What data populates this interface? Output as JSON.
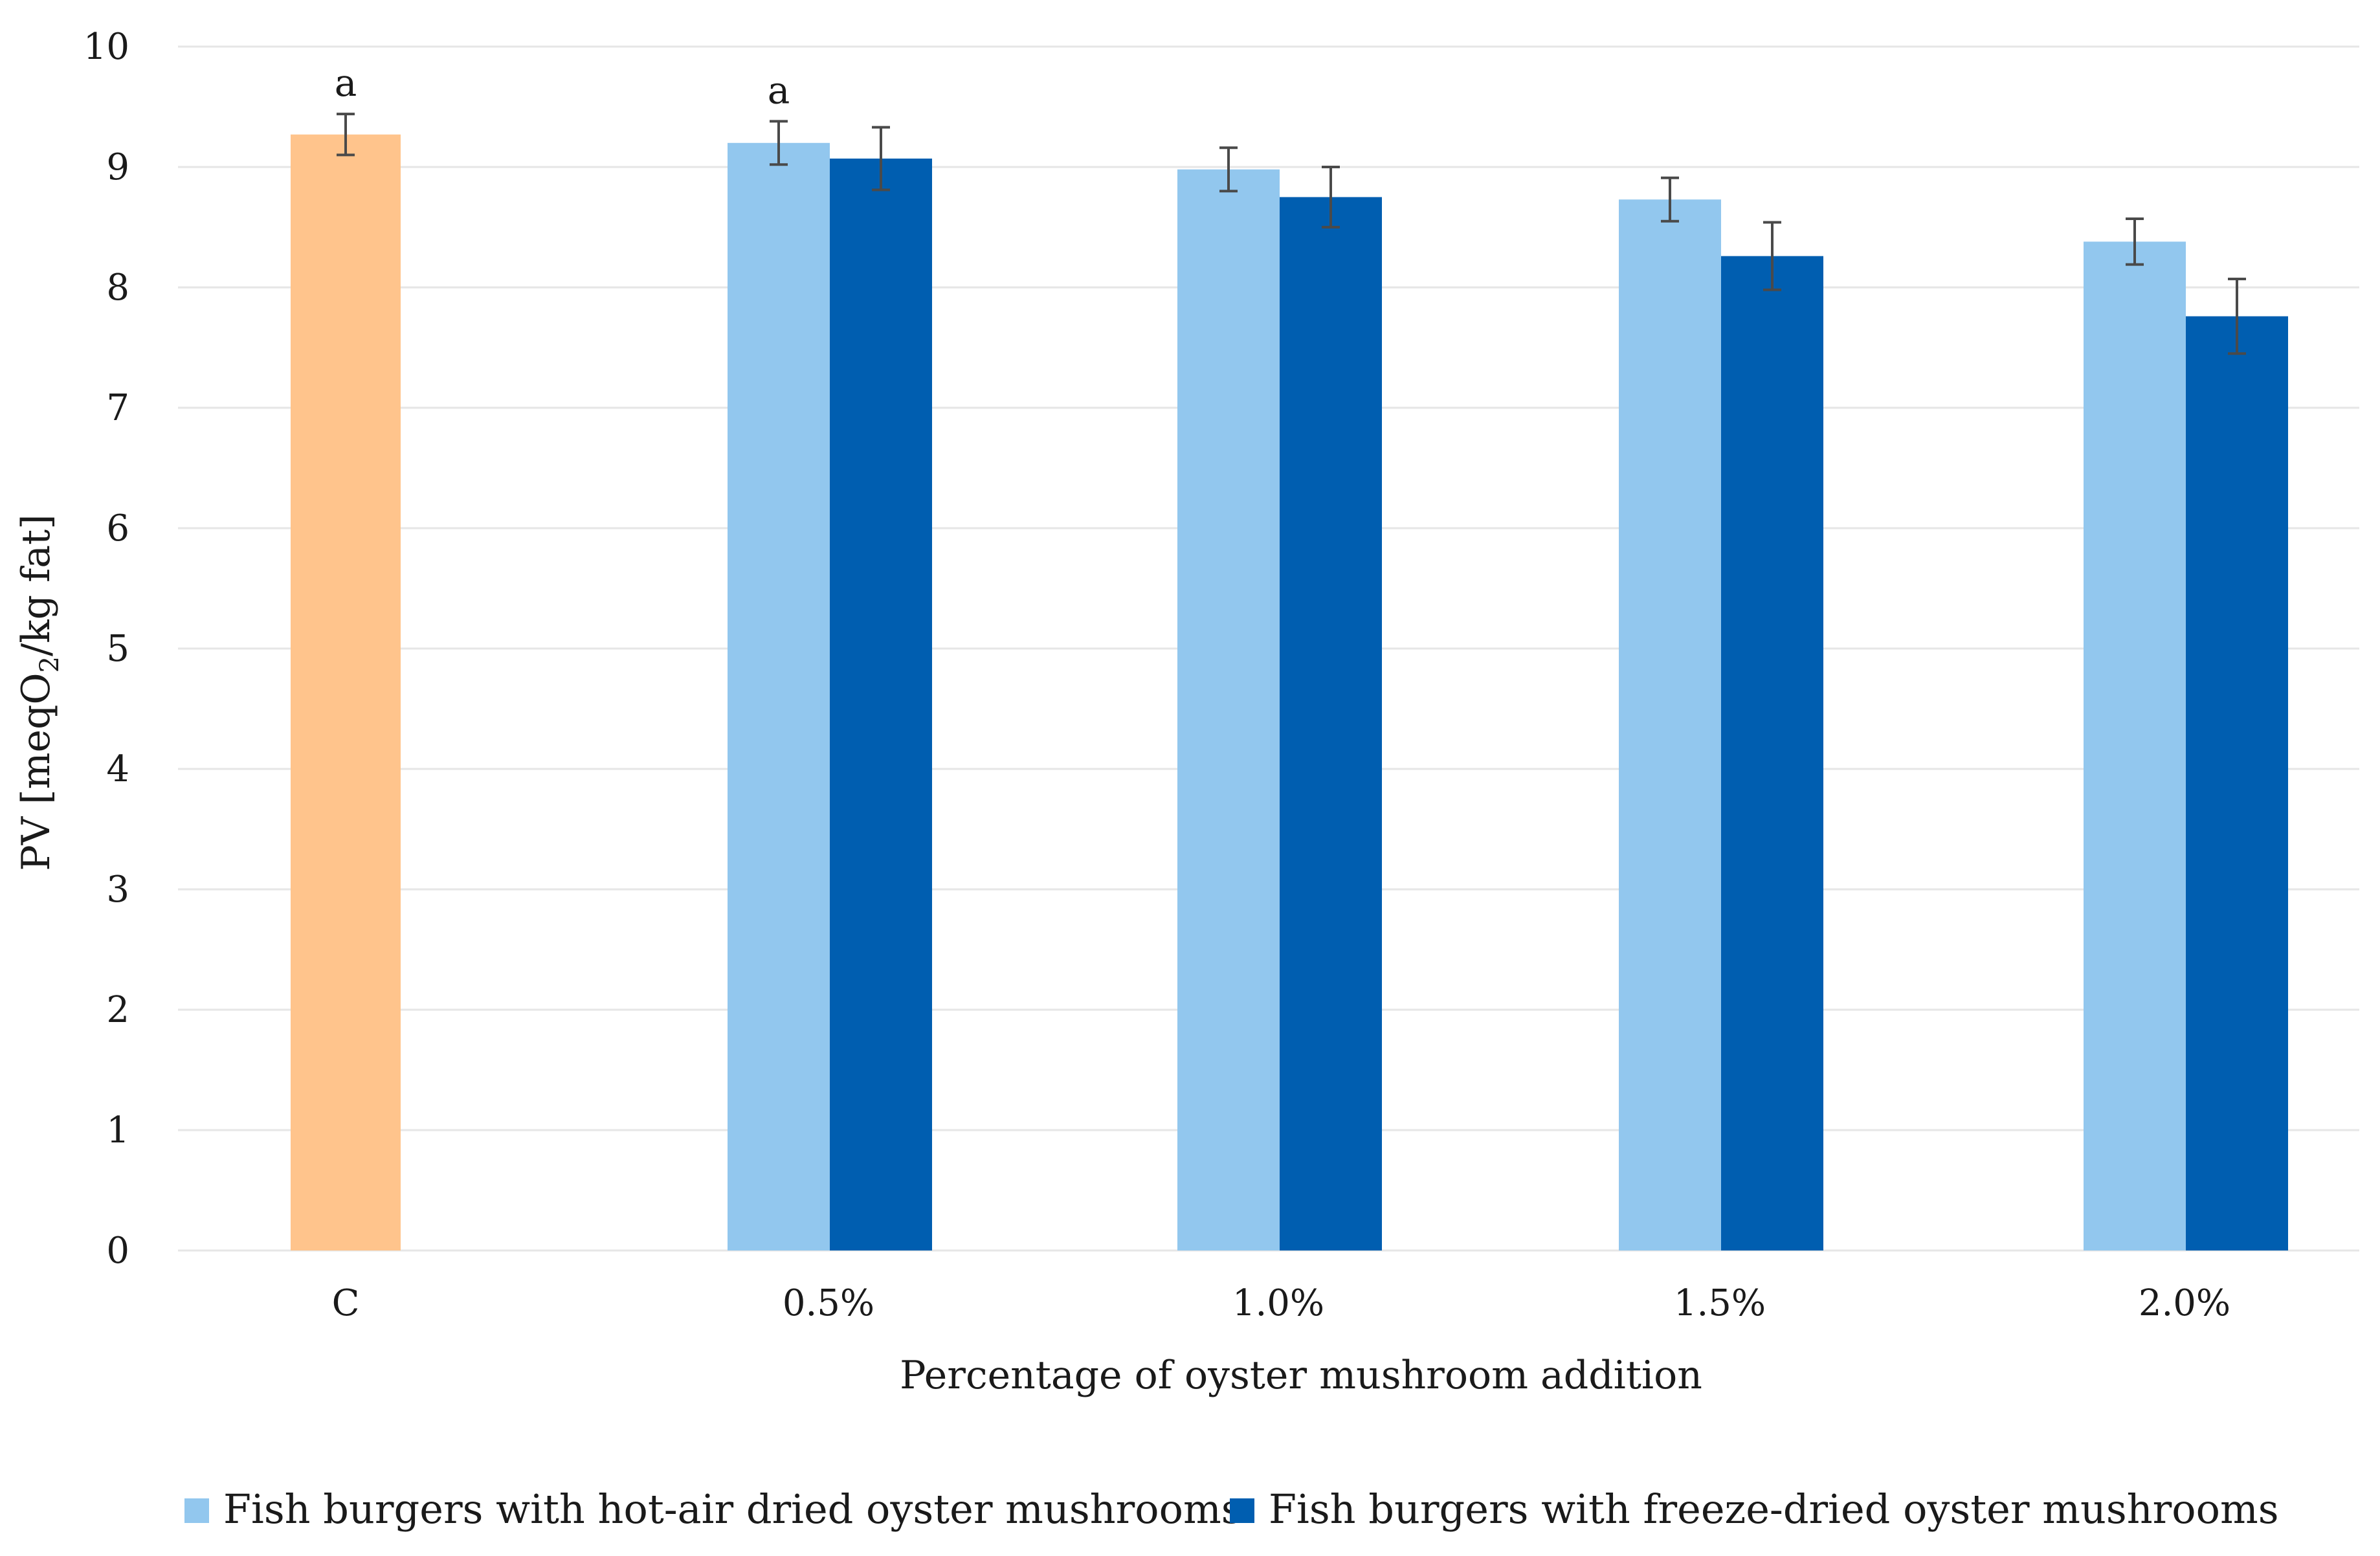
{
  "chart_data": {
    "type": "bar",
    "title": "",
    "xlabel": "Percentage of oyster mushroom addition",
    "ylabel": "PV [meqO₂/kg fat]",
    "ylabel_parts": {
      "pre": "PV [meqO",
      "sub": "2",
      "post": "/kg fat]"
    },
    "ylim": [
      0,
      10
    ],
    "yticks": [
      0,
      1,
      2,
      3,
      4,
      5,
      6,
      7,
      8,
      9,
      10
    ],
    "grid": true,
    "legend_position": "bottom",
    "categories": [
      "C",
      "0.5%",
      "1.0%",
      "1.5%",
      "2.0%"
    ],
    "control": {
      "category": "C",
      "value": 9.27,
      "error": 0.17,
      "color": "#FFC48C",
      "annotation": "a"
    },
    "series": [
      {
        "name": "Fish burgers with hot-air dried oyster mushrooms",
        "color": "#92C7EE",
        "values": [
          null,
          9.2,
          8.98,
          8.73,
          8.38
        ],
        "errors": [
          null,
          0.18,
          0.18,
          0.18,
          0.19
        ],
        "annotations": [
          null,
          "a",
          null,
          null,
          null
        ]
      },
      {
        "name": "Fish burgers with freeze-dried oyster mushrooms",
        "color": "#005EB0",
        "values": [
          null,
          9.07,
          8.75,
          8.26,
          7.76
        ],
        "errors": [
          null,
          0.26,
          0.25,
          0.28,
          0.31
        ],
        "annotations": [
          null,
          null,
          null,
          null,
          null
        ]
      }
    ]
  }
}
